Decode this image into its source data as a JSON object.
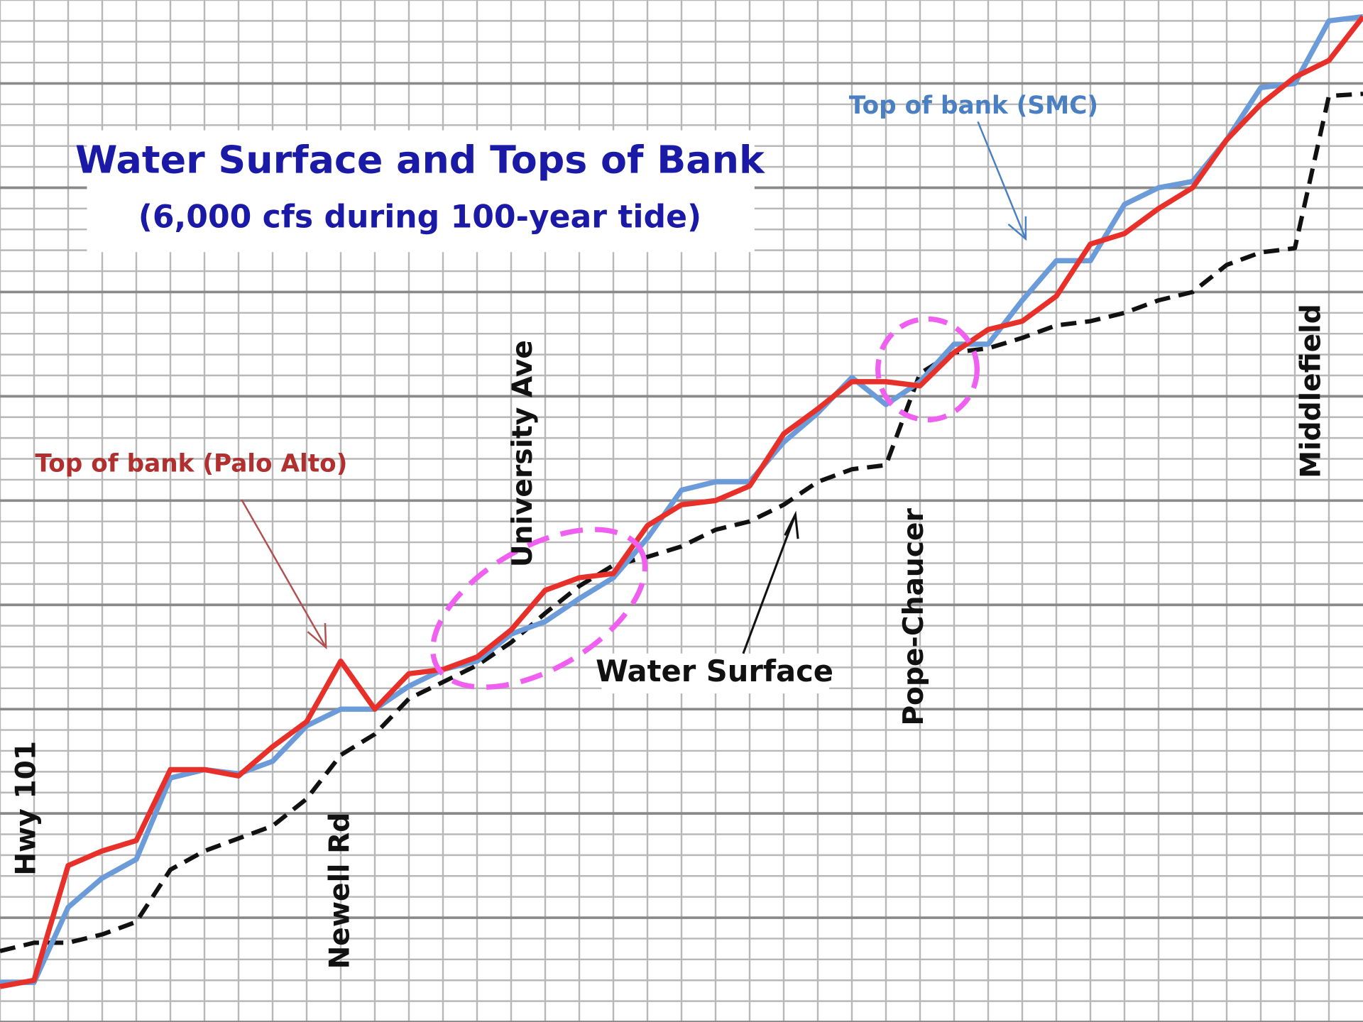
{
  "chart_data": {
    "type": "line",
    "title": "Water Surface and Tops of Bank",
    "subtitle": "(6,000 cfs during 100-year tide)",
    "xlim": [
      0,
      40
    ],
    "ylim": [
      0,
      49
    ],
    "grid": true,
    "x": [
      0,
      1,
      2,
      3,
      4,
      5,
      6,
      7,
      8,
      9,
      10,
      11,
      12,
      13,
      14,
      15,
      16,
      17,
      18,
      19,
      20,
      21,
      22,
      23,
      24,
      25,
      26,
      27,
      28,
      29,
      30,
      31,
      32,
      33,
      34,
      35,
      36,
      37,
      38,
      39,
      40
    ],
    "series": [
      {
        "name": "Top of bank (SMC)",
        "color": "#6b9bd8",
        "values": [
          1.9,
          1.9,
          5.5,
          6.9,
          7.8,
          11.7,
          12.1,
          11.9,
          12.5,
          14.2,
          15.0,
          15.0,
          16.1,
          16.9,
          17.3,
          18.6,
          19.2,
          20.3,
          21.3,
          23.2,
          25.5,
          25.9,
          25.9,
          27.8,
          29.2,
          30.9,
          29.6,
          30.7,
          32.5,
          32.5,
          34.6,
          36.5,
          36.5,
          39.2,
          40.0,
          40.3,
          42.3,
          44.8,
          45.0,
          48.0,
          48.2
        ]
      },
      {
        "name": "Top of bank (Palo Alto)",
        "color": "#e8302a",
        "values": [
          1.7,
          2.0,
          7.5,
          8.2,
          8.7,
          12.1,
          12.1,
          11.8,
          13.2,
          14.4,
          17.3,
          15.0,
          16.7,
          16.9,
          17.5,
          18.8,
          20.7,
          21.3,
          21.5,
          23.8,
          24.8,
          25.0,
          25.7,
          28.2,
          29.4,
          30.7,
          30.7,
          30.5,
          32.1,
          33.2,
          33.6,
          34.8,
          37.3,
          37.8,
          39.0,
          40.0,
          42.3,
          44.0,
          45.3,
          46.1,
          48.2
        ]
      },
      {
        "name": "Water Surface",
        "color": "#111111",
        "dashed": true,
        "values": [
          3.4,
          3.8,
          3.8,
          4.2,
          4.8,
          7.3,
          8.2,
          8.8,
          9.4,
          10.7,
          12.8,
          13.8,
          15.5,
          16.3,
          17.1,
          18.2,
          19.6,
          20.9,
          21.9,
          22.3,
          22.8,
          23.6,
          24.0,
          24.8,
          25.9,
          26.5,
          26.7,
          31.1,
          32.1,
          32.3,
          32.8,
          33.4,
          33.6,
          34.0,
          34.6,
          35.0,
          36.3,
          36.9,
          37.1,
          44.4,
          44.5
        ]
      }
    ],
    "annotations": [
      {
        "text": "Hwy 101"
      },
      {
        "text": "Newell Rd"
      },
      {
        "text": "University Ave"
      },
      {
        "text": "Pope-Chaucer"
      },
      {
        "text": "Middlefield"
      }
    ]
  }
}
